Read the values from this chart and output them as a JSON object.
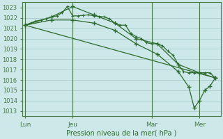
{
  "bg_color": "#cce8e8",
  "grid_color": "#aacccc",
  "line_color": "#2d6a2d",
  "title": "Pression niveau de la mer( hPa )",
  "xlabel_ticks": [
    "Lun",
    "Jeu",
    "Mar",
    "Mer"
  ],
  "xlabel_tick_positions": [
    0,
    9,
    24,
    33
  ],
  "ylim": [
    1012.5,
    1023.5
  ],
  "yticks": [
    1013,
    1014,
    1015,
    1016,
    1017,
    1018,
    1019,
    1020,
    1021,
    1022,
    1023
  ],
  "xlim": [
    -0.5,
    37
  ],
  "series1": {
    "x": [
      0,
      1,
      2,
      3,
      4,
      5,
      6,
      7,
      8,
      9,
      10,
      11,
      12,
      13,
      14,
      15,
      16,
      17,
      18,
      19,
      20,
      21,
      22,
      23,
      24,
      25,
      26,
      27,
      28,
      29,
      30,
      31,
      32,
      33,
      34,
      35,
      36
    ],
    "y": [
      1021.3,
      1021.5,
      1021.7,
      1021.8,
      1021.9,
      1022.1,
      1022.2,
      1022.5,
      1023.1,
      1022.2,
      1022.2,
      1022.25,
      1022.3,
      1022.2,
      1022.15,
      1022.1,
      1021.9,
      1021.5,
      1021.3,
      1021.3,
      1020.5,
      1020.2,
      1020.0,
      1019.6,
      1019.5,
      1019.5,
      1019.3,
      1018.8,
      1018.4,
      1017.5,
      1016.8,
      1016.7,
      1016.7,
      1016.7,
      1016.7,
      1016.7,
      1016.2
    ]
  },
  "series2": {
    "x": [
      0,
      5,
      9,
      13,
      17,
      21,
      25,
      29,
      33,
      36
    ],
    "y": [
      1021.3,
      1022.1,
      1023.1,
      1022.3,
      1021.5,
      1020.0,
      1019.5,
      1017.5,
      1016.7,
      1016.2
    ]
  },
  "series3": {
    "x": [
      0,
      36
    ],
    "y": [
      1021.3,
      1016.2
    ]
  },
  "series4": {
    "x": [
      0,
      5,
      9,
      13,
      17,
      21,
      25,
      29,
      31,
      32,
      33,
      34,
      35,
      36
    ],
    "y": [
      1021.3,
      1021.8,
      1021.8,
      1021.5,
      1020.8,
      1019.5,
      1018.5,
      1016.8,
      1015.3,
      1013.3,
      1014.0,
      1015.0,
      1015.4,
      1016.2
    ]
  },
  "vline_positions": [
    0,
    9,
    24,
    33
  ],
  "spine_color": "#4a7a4a",
  "tick_color": "#4a7a4a"
}
